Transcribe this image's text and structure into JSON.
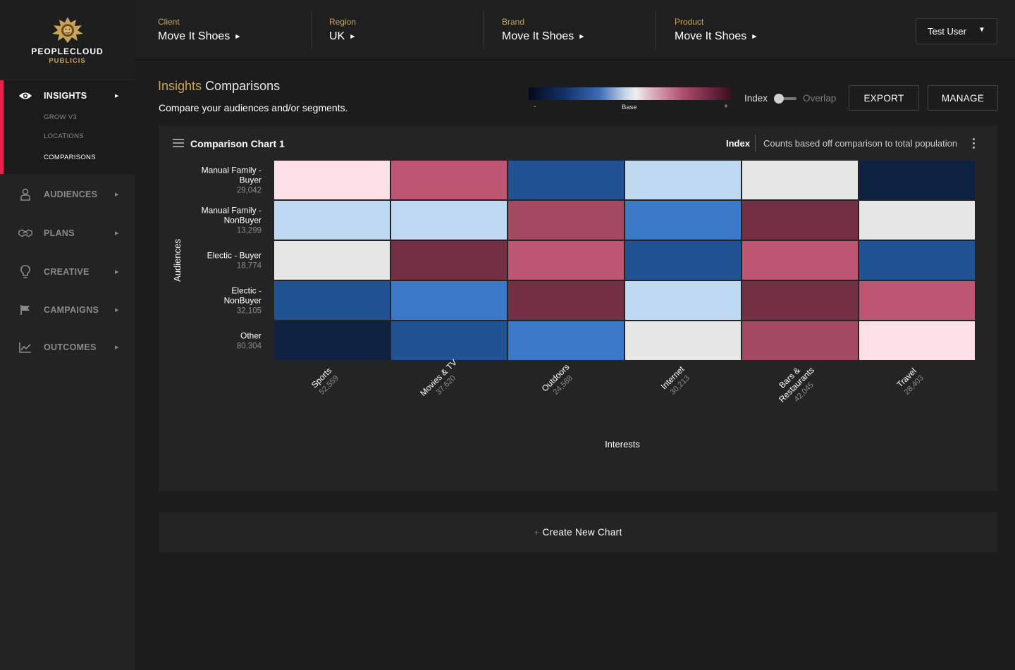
{
  "brand": {
    "name": "PEOPLECLOUD",
    "sub": "PUBLICIS"
  },
  "sidebar": {
    "insights": {
      "label": "INSIGHTS",
      "icon": "eye-icon",
      "children": [
        "GROW V3",
        "LOCATIONS",
        "COMPARISONS"
      ],
      "active_child": "COMPARISONS"
    },
    "items": [
      {
        "label": "AUDIENCES",
        "icon": "person-icon"
      },
      {
        "label": "PLANS",
        "icon": "handshake-icon"
      },
      {
        "label": "CREATIVE",
        "icon": "lightbulb-icon"
      },
      {
        "label": "CAMPAIGNS",
        "icon": "flag-icon"
      },
      {
        "label": "OUTCOMES",
        "icon": "trend-chart-icon"
      }
    ]
  },
  "header": {
    "selectors": [
      {
        "caption": "Client",
        "value": "Move It Shoes"
      },
      {
        "caption": "Region",
        "value": "UK"
      },
      {
        "caption": "Brand",
        "value": "Move It Shoes"
      },
      {
        "caption": "Product",
        "value": "Move It Shoes"
      }
    ],
    "user": "Test User"
  },
  "page": {
    "title_accent": "Insights",
    "title_rest": "Comparisons",
    "subtitle": "Compare your audiences and/or segments."
  },
  "legend": {
    "minus": "-",
    "base": "Base",
    "plus": "+"
  },
  "toggle": {
    "left": "Index",
    "right": "Overlap",
    "selected": "Index"
  },
  "actions": {
    "export": "EXPORT",
    "manage": "MANAGE"
  },
  "chart_card": {
    "title": "Comparison Chart 1",
    "mode": "Index",
    "description": "Counts based off comparison to total population"
  },
  "colors": {
    "accent": "#e8214f",
    "gold": "#c9a45a",
    "scale": {
      "-3": "#0e2140",
      "-2": "#215394",
      "-1": "#3c78c8",
      "0": "#c0d9f3",
      "1": "#e6e6e6",
      "2": "#fde0e8",
      "3": "#bd5673",
      "4": "#a34a62",
      "5": "#733045"
    }
  },
  "chart_data": {
    "type": "heatmap",
    "ylabel": "Audiences",
    "xlabel": "Interests",
    "rows": [
      {
        "name": "Manual Family - Buyer",
        "lines": [
          "Manual Family -",
          "Buyer"
        ],
        "count": "29,042"
      },
      {
        "name": "Manual Family - NonBuyer",
        "lines": [
          "Manual Family -",
          "NonBuyer"
        ],
        "count": "13,299"
      },
      {
        "name": "Electic - Buyer",
        "lines": [
          "Electic - Buyer"
        ],
        "count": "18,774"
      },
      {
        "name": "Electic - NonBuyer",
        "lines": [
          "Electic -",
          "NonBuyer"
        ],
        "count": "32,105"
      },
      {
        "name": "Other",
        "lines": [
          "Other"
        ],
        "count": "80,304"
      }
    ],
    "columns": [
      {
        "name": "Sports",
        "lines": [
          "Sports"
        ],
        "count": "52,559"
      },
      {
        "name": "Movies & TV",
        "lines": [
          "Movies & TV"
        ],
        "count": "37,620"
      },
      {
        "name": "Outdoors",
        "lines": [
          "Outdoors"
        ],
        "count": "24,588"
      },
      {
        "name": "Internet",
        "lines": [
          "Internet"
        ],
        "count": "30,213"
      },
      {
        "name": "Bars & Restaurants",
        "lines": [
          "Bars &",
          "Restaurants"
        ],
        "count": "42,045"
      },
      {
        "name": "Travel",
        "lines": [
          "Travel"
        ],
        "count": "28,403"
      }
    ],
    "levels": [
      [
        2,
        3,
        -2,
        0,
        1,
        -3
      ],
      [
        0,
        0,
        4,
        -1,
        5,
        1
      ],
      [
        1,
        5,
        3,
        -2,
        3,
        -2
      ],
      [
        -2,
        -1,
        5,
        0,
        5,
        3
      ],
      [
        -3,
        -2,
        -1,
        1,
        4,
        2
      ]
    ]
  },
  "create_button": {
    "plus": "+",
    "label": "Create New Chart"
  }
}
